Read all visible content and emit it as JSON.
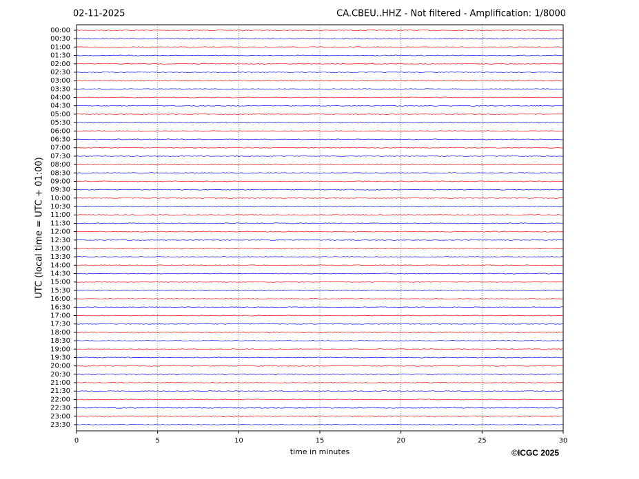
{
  "chart_data": {
    "type": "helicorder",
    "date": "02-11-2025",
    "title": "CA.CBEU..HHZ - Not filtered - Amplification: 1/8000",
    "x_label": "time in minutes",
    "y_label": "UTC (local time = UTC + 01:00)",
    "annotation": "©ICGC 2025",
    "xlim": [
      0,
      30
    ],
    "xticks": [
      0,
      5,
      10,
      15,
      20,
      25,
      30
    ],
    "grid": true,
    "colors": [
      "#ff0000",
      "#0000ff"
    ],
    "categories": [
      "00:00",
      "00:30",
      "01:00",
      "01:30",
      "02:00",
      "02:30",
      "03:00",
      "03:30",
      "04:00",
      "04:30",
      "05:00",
      "05:30",
      "06:00",
      "06:30",
      "07:00",
      "07:30",
      "08:00",
      "08:30",
      "09:00",
      "09:30",
      "10:00",
      "10:30",
      "11:00",
      "11:30",
      "12:00",
      "12:30",
      "13:00",
      "13:30",
      "14:00",
      "14:30",
      "15:00",
      "15:30",
      "16:00",
      "16:30",
      "17:00",
      "17:30",
      "18:00",
      "18:30",
      "19:00",
      "19:30",
      "20:00",
      "20:30",
      "21:00",
      "21:30",
      "22:00",
      "22:30",
      "23:00",
      "23:30"
    ]
  }
}
